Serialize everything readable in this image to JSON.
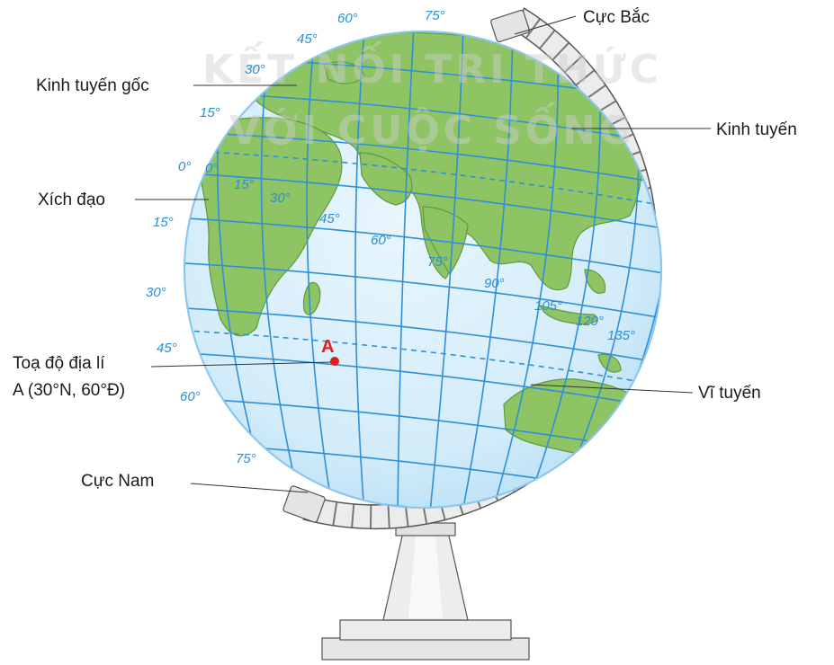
{
  "watermark": {
    "line1": "KẾT NỐI TRI THỨC",
    "line2": "VỚI CUỘC SỐNG"
  },
  "labels": {
    "north_pole": "Cực Bắc",
    "prime_meridian": "Kinh tuyến gốc",
    "meridian": "Kinh tuyến",
    "equator": "Xích đạo",
    "coordinate_line1": "Toạ độ địa lí",
    "coordinate_line2": "A (30°N, 60°Đ)",
    "parallel": "Vĩ tuyến",
    "south_pole": "Cực Nam",
    "point_a": "A"
  },
  "degree_labels": {
    "lat_left": [
      "60°",
      "45°",
      "30°",
      "15°",
      "0°",
      "15°",
      "30°",
      "45°",
      "60°",
      "75°"
    ],
    "lon_top": [
      "60°",
      "75°"
    ],
    "lon_equator": [
      "0°",
      "15°",
      "30°",
      "45°",
      "60°",
      "75°",
      "90°",
      "105°",
      "120°",
      "135°"
    ]
  },
  "colors": {
    "ocean": "#dcf0fb",
    "land": "#8fc464",
    "grid": "#2f8fd8",
    "point": "#e02020",
    "frame": "#ebebeb"
  },
  "icons": {
    "point_marker": "red-dot-icon"
  }
}
